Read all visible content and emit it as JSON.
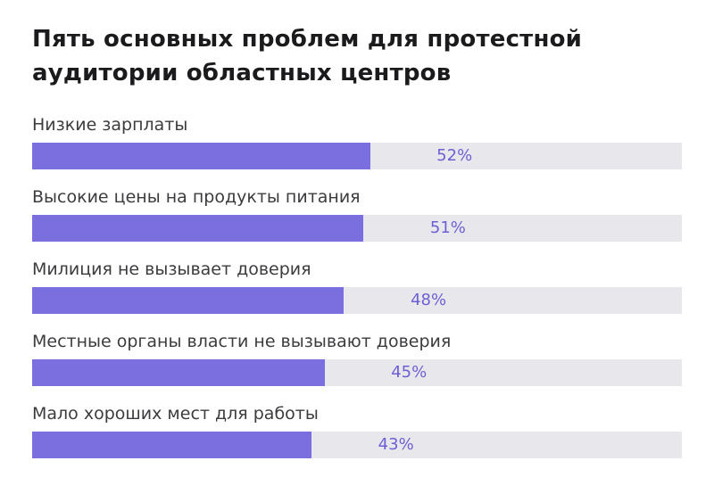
{
  "chart_data": {
    "type": "bar",
    "orientation": "horizontal",
    "title": "Пять основных проблем для протестной аудитории областных центров",
    "categories": [
      "Низкие зарплаты",
      "Высокие цены на продукты питания",
      "Милиция не вызывает доверия",
      "Местные органы власти не вызывают доверия",
      "Мало хороших мест для работы"
    ],
    "values": [
      52,
      51,
      48,
      45,
      43
    ],
    "value_suffix": "%",
    "xlim": [
      0,
      100
    ],
    "legend": "none",
    "grid": "off",
    "colors": {
      "bar": "#7b6fe0",
      "track": "#e8e8ec",
      "value_label": "#6c5fd6",
      "title": "#1b1b1e",
      "category_label": "#3c3c40"
    }
  }
}
